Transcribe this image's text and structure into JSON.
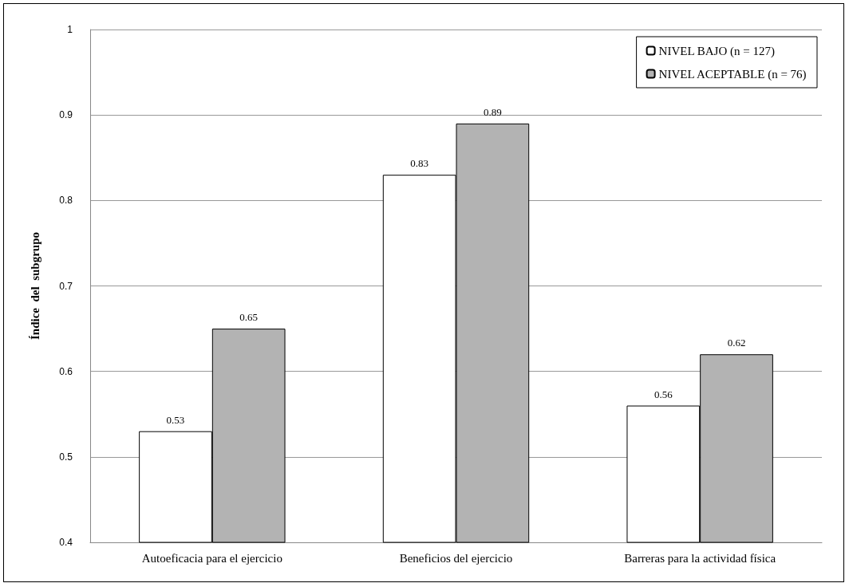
{
  "chart_data": {
    "type": "bar",
    "ylabel": "Índice  del  subgrupo",
    "categories": [
      "Autoeficacia para el ejercicio",
      "Beneficios del ejercicio",
      "Barreras para la actividad física"
    ],
    "series": [
      {
        "name": "NIVEL BAJO (n = 127)",
        "color": "#ffffff",
        "values": [
          0.53,
          0.83,
          0.56
        ]
      },
      {
        "name": "NIVEL ACEPTABLE (n = 76)",
        "color": "#b3b3b3",
        "values": [
          0.65,
          0.89,
          0.62
        ]
      }
    ],
    "ylim": [
      0.4,
      1
    ],
    "yticks": [
      0.4,
      0.5,
      0.6,
      0.7,
      0.8,
      0.9,
      1
    ],
    "grid": "y",
    "legend": "top right",
    "data_labels": true
  }
}
